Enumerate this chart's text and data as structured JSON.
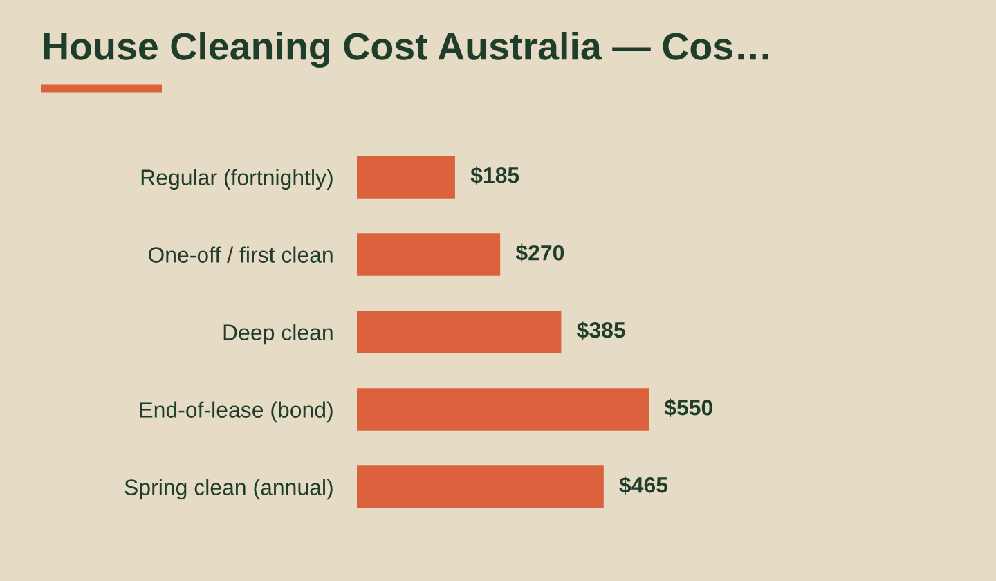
{
  "chart_data": {
    "type": "bar",
    "orientation": "horizontal",
    "title": "House Cleaning Cost Australia — Cos…",
    "categories": [
      "Regular (fortnightly)",
      "One-off / first clean",
      "Deep clean",
      "End-of-lease (bond)",
      "Spring clean (annual)"
    ],
    "values": [
      185,
      270,
      385,
      550,
      465
    ],
    "value_labels": [
      "$185",
      "$270",
      "$385",
      "$550",
      "$465"
    ],
    "color": "#dc623d",
    "grid": false,
    "legend": false
  }
}
